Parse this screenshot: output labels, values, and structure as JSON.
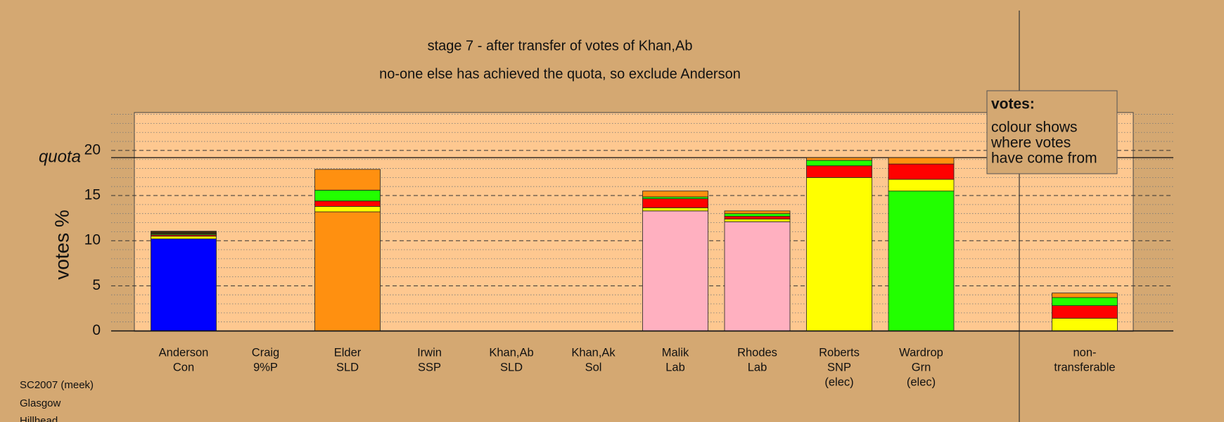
{
  "chart_data": {
    "type": "stacked_bar",
    "title": "stage 7 - after transfer of votes of Khan,Ab",
    "subtitle": "no-one else has achieved the quota, so exclude Anderson",
    "y_label": "votes %",
    "quota_label": "quota",
    "quota": 19.2,
    "ylim": [
      0,
      24.2
    ],
    "yticks": [
      0,
      5,
      10,
      15,
      20
    ],
    "minor_yticks": [
      1,
      2,
      3,
      4,
      6,
      7,
      8,
      9,
      11,
      12,
      13,
      14,
      16,
      17,
      18,
      19,
      21,
      22,
      23,
      24
    ],
    "grid": true,
    "categories": [
      [
        "Anderson",
        "Con"
      ],
      [
        "Craig",
        "9%P"
      ],
      [
        "Elder",
        "SLD"
      ],
      [
        "Irwin",
        "SSP"
      ],
      [
        "Khan,Ab",
        "SLD"
      ],
      [
        "Khan,Ak",
        "Sol"
      ],
      [
        "Malik",
        "Lab"
      ],
      [
        "Rhodes",
        "Lab"
      ],
      [
        "Roberts",
        "SNP",
        "(elec)"
      ],
      [
        "Wardrop",
        "Grn",
        "(elec)"
      ],
      [
        "non-",
        "transferable"
      ]
    ],
    "stacks": [
      [
        {
          "value": 10.2,
          "color": "#0000ff"
        },
        {
          "value": 0.3,
          "color": "#ffff00"
        },
        {
          "value": 0.15,
          "color": "#ff0000"
        },
        {
          "value": 0.1,
          "color": "#22ff00"
        },
        {
          "value": 0.3,
          "color": "#3a2a10"
        }
      ],
      [],
      [
        {
          "value": 13.2,
          "color": "#ff9010"
        },
        {
          "value": 0.6,
          "color": "#ffff00"
        },
        {
          "value": 0.6,
          "color": "#ff0000"
        },
        {
          "value": 1.2,
          "color": "#22ff00"
        },
        {
          "value": 2.3,
          "color": "#ff9010"
        }
      ],
      [],
      [],
      [],
      [
        {
          "value": 13.3,
          "color": "#ffb0c0"
        },
        {
          "value": 0.35,
          "color": "#ffff00"
        },
        {
          "value": 1.0,
          "color": "#ff0000"
        },
        {
          "value": 0.2,
          "color": "#22ff00"
        },
        {
          "value": 0.65,
          "color": "#ff9010"
        }
      ],
      [
        {
          "value": 12.1,
          "color": "#ffb0c0"
        },
        {
          "value": 0.3,
          "color": "#ffff00"
        },
        {
          "value": 0.3,
          "color": "#ff0000"
        },
        {
          "value": 0.3,
          "color": "#22ff00"
        },
        {
          "value": 0.3,
          "color": "#ff9010"
        }
      ],
      [
        {
          "value": 17.0,
          "color": "#ffff00"
        },
        {
          "value": 1.3,
          "color": "#ff0000"
        },
        {
          "value": 0.6,
          "color": "#22ff00"
        },
        {
          "value": 0.3,
          "color": "#ff9010"
        }
      ],
      [
        {
          "value": 15.5,
          "color": "#22ff00"
        },
        {
          "value": 1.3,
          "color": "#ffff00"
        },
        {
          "value": 1.7,
          "color": "#ff0000"
        },
        {
          "value": 0.7,
          "color": "#ff9010"
        }
      ],
      [
        {
          "value": 1.4,
          "color": "#ffff00"
        },
        {
          "value": 1.4,
          "color": "#ff0000"
        },
        {
          "value": 0.9,
          "color": "#22ff00"
        },
        {
          "value": 0.5,
          "color": "#ff9010"
        }
      ]
    ],
    "legend_title": "votes:",
    "legend_lines": [
      "colour shows",
      "where votes",
      "have come from"
    ],
    "footer": [
      "SC2007 (meek)",
      "Glasgow",
      "Hillhead"
    ]
  }
}
